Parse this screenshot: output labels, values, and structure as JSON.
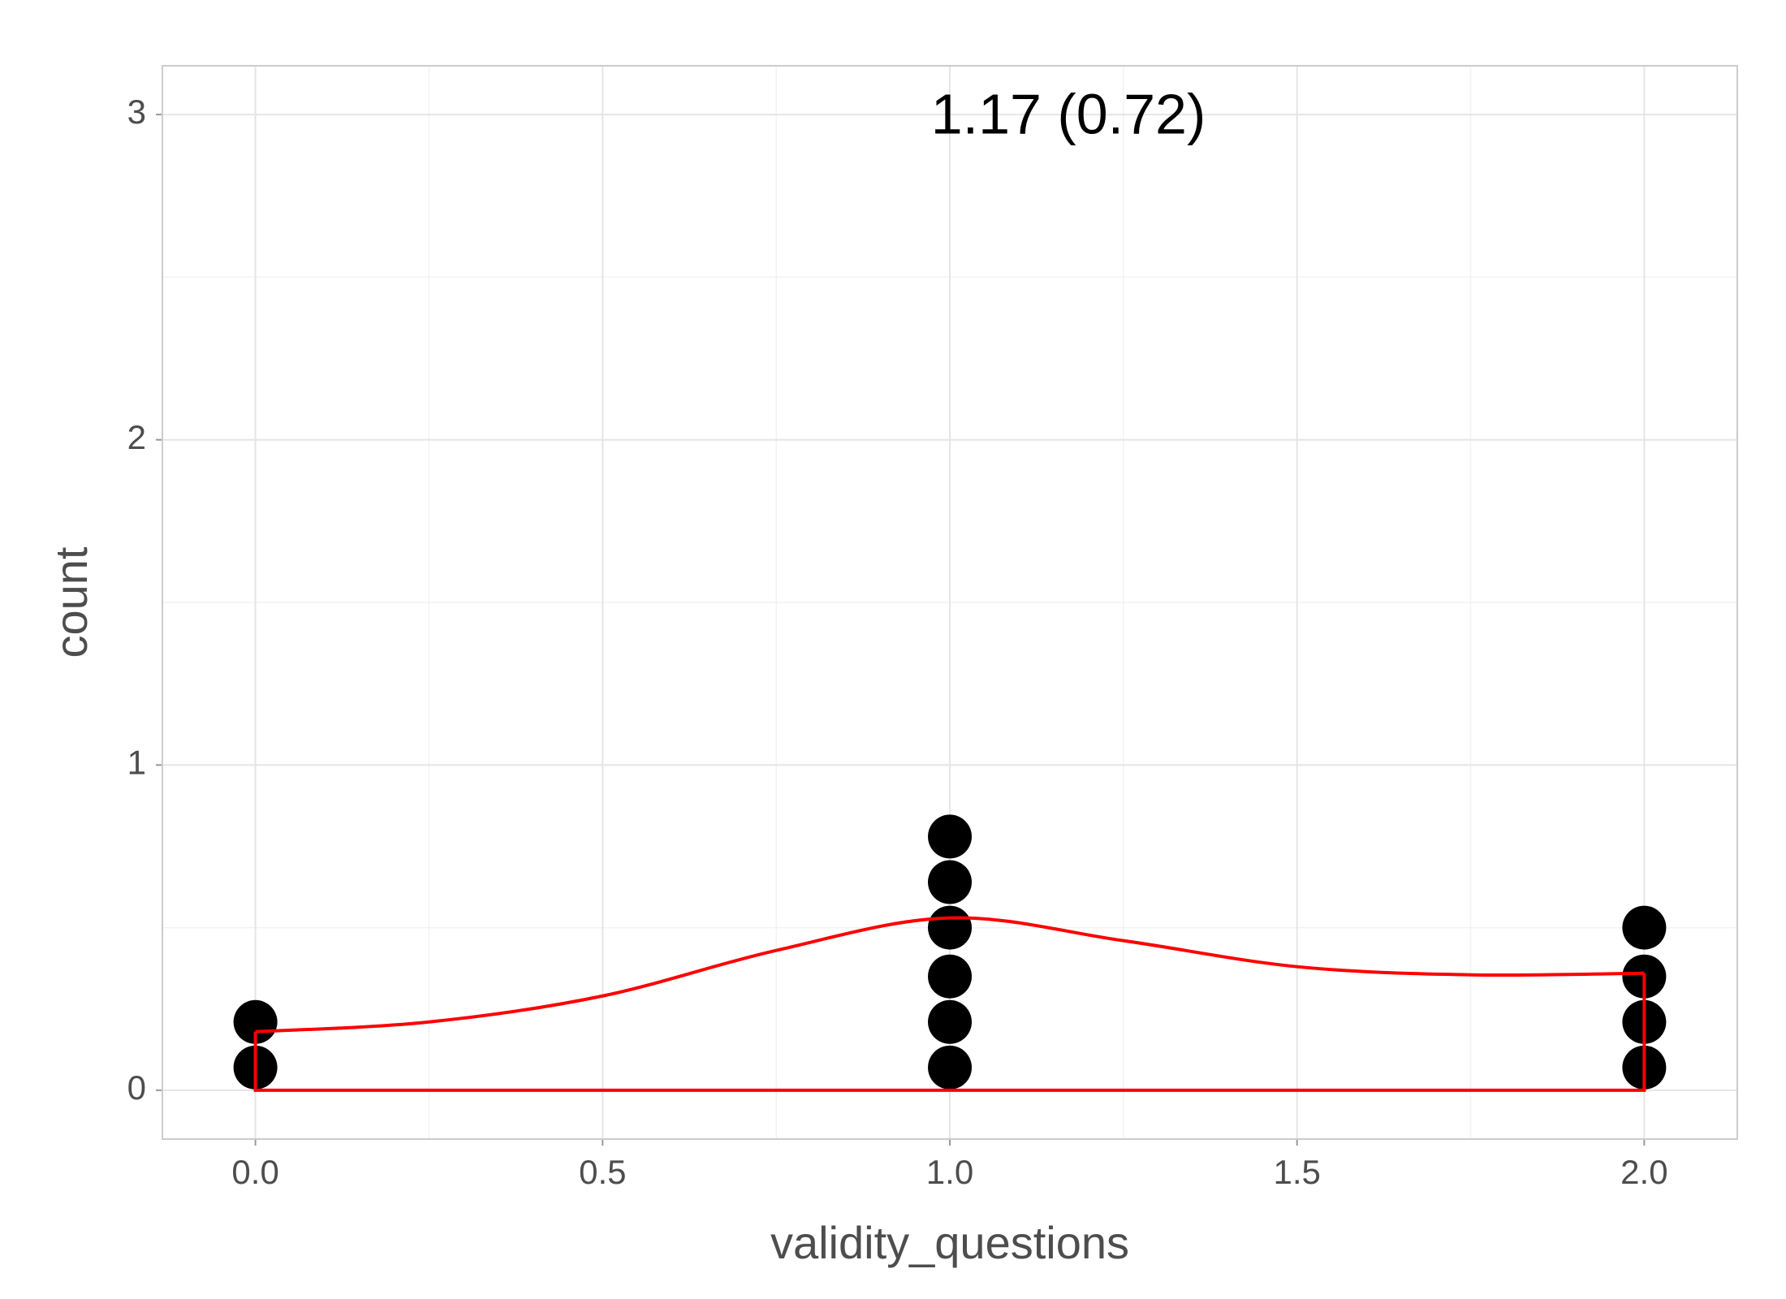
{
  "chart_data": {
    "type": "dotplot",
    "annotation": "1.17 (0.72)",
    "x_label": "validity_questions",
    "y_label": "count",
    "xlim": [
      -0.134,
      2.134
    ],
    "ylim": [
      -0.15,
      3.15
    ],
    "xticks": [
      {
        "value": 0,
        "label": "0.0"
      },
      0.5,
      {
        "value": 1,
        "label": "1.0"
      },
      1.5,
      {
        "value": 2,
        "label": "2.0"
      }
    ],
    "yticks": [
      0,
      1,
      2,
      3
    ],
    "grid": true,
    "points": {
      "color": "#000000",
      "x": [
        0,
        0,
        1,
        1,
        1,
        1,
        1,
        1,
        2,
        2,
        2,
        2
      ],
      "y": [
        0.07,
        0.21,
        0.07,
        0.21,
        0.35,
        0.5,
        0.64,
        0.78,
        0.07,
        0.21,
        0.35,
        0.5
      ]
    },
    "density": {
      "color": "#ff0000",
      "x": [
        0,
        0.25,
        0.5,
        0.75,
        1.0,
        1.25,
        1.5,
        1.75,
        2.0
      ],
      "y": [
        0.18,
        0.21,
        0.29,
        0.43,
        0.53,
        0.46,
        0.38,
        0.355,
        0.36
      ]
    }
  }
}
